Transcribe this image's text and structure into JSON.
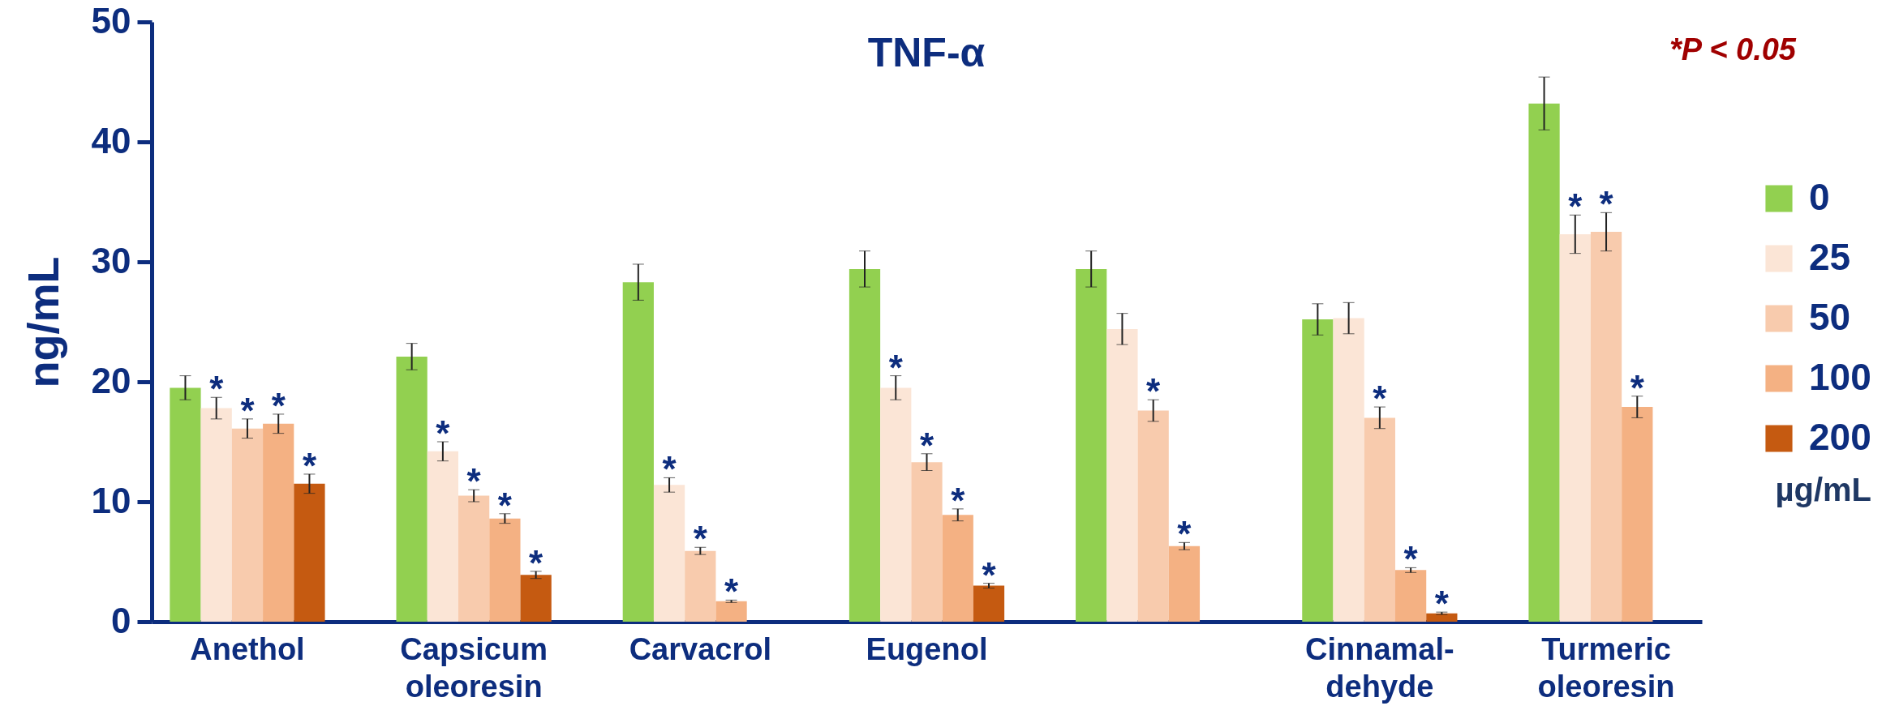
{
  "chart_data": {
    "type": "bar",
    "title": "TNF-α",
    "ylabel": "ng/mL",
    "legend_title": "µg/mL",
    "categories": [
      "Anethol",
      "Capsicum oleoresin",
      "Carvacrol",
      "Eugenol",
      null,
      "Cinnamal-dehyde",
      "Turmeric oleoresin"
    ],
    "ylim": [
      0,
      50
    ],
    "yticks": [
      0,
      10,
      20,
      30,
      40,
      50
    ],
    "legend": "right",
    "annotations": [
      "*P < 0.05"
    ],
    "series": [
      {
        "name": "0",
        "color": "#92d050",
        "values": [
          19.5,
          22.1,
          28.3,
          29.4,
          29.4,
          25.2,
          43.2
        ],
        "errors": [
          1.0,
          1.1,
          1.5,
          1.5,
          1.5,
          1.3,
          2.2
        ],
        "value_labels": [
          null,
          null,
          null,
          null,
          null,
          null,
          null
        ]
      },
      {
        "name": "25",
        "color": "#fbe5d6",
        "values": [
          17.8,
          14.2,
          11.4,
          19.5,
          24.4,
          25.3,
          32.3
        ],
        "errors": [
          0.9,
          0.8,
          0.6,
          1.0,
          1.3,
          1.3,
          1.6
        ],
        "value_labels": [
          "*",
          "*",
          "*",
          "*",
          null,
          null,
          "*"
        ]
      },
      {
        "name": "50",
        "color": "#f8cbad",
        "values": [
          16.1,
          10.5,
          5.9,
          13.3,
          17.6,
          17.0,
          32.5
        ],
        "errors": [
          0.8,
          0.5,
          0.3,
          0.7,
          0.9,
          0.9,
          1.6
        ],
        "value_labels": [
          "*",
          "*",
          "*",
          "*",
          "*",
          "*",
          "*"
        ]
      },
      {
        "name": "100",
        "color": "#f4b183",
        "values": [
          16.5,
          8.6,
          1.7,
          8.9,
          6.3,
          4.3,
          17.9
        ],
        "errors": [
          0.8,
          0.4,
          0.1,
          0.5,
          0.3,
          0.2,
          0.9
        ],
        "value_labels": [
          "*",
          "*",
          "*",
          "*",
          "*",
          "*",
          "*"
        ]
      },
      {
        "name": "200",
        "color": "#c55a11",
        "values": [
          11.5,
          3.9,
          null,
          3.0,
          null,
          0.7,
          null
        ],
        "errors": [
          0.8,
          0.3,
          null,
          0.2,
          null,
          0.1,
          null
        ],
        "value_labels": [
          "*",
          "*",
          null,
          "*",
          null,
          "*",
          null
        ]
      }
    ]
  }
}
